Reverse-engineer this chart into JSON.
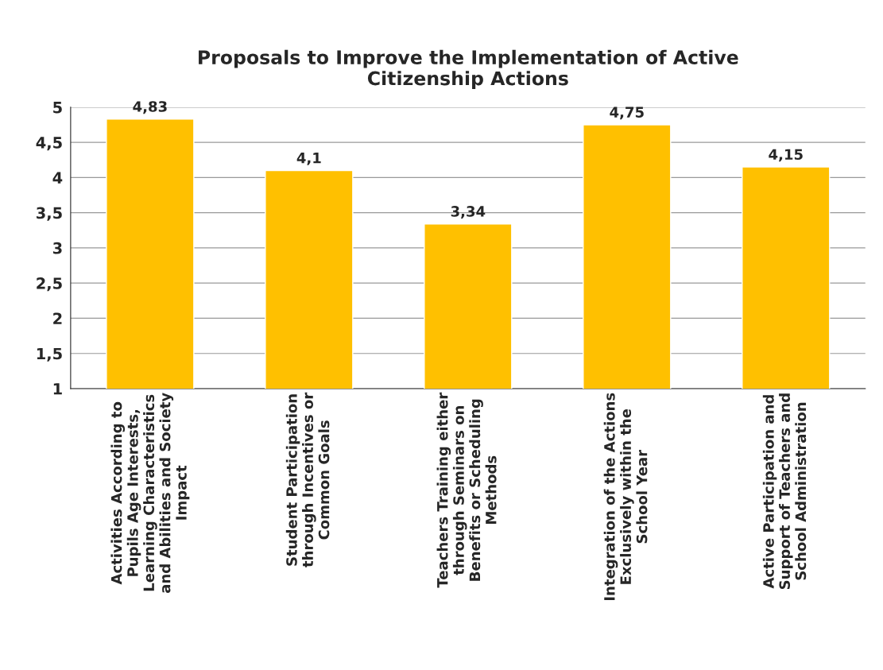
{
  "chart_data": {
    "type": "bar",
    "title": "Proposals to Improve the Implementation of Active\nCitizenship Actions",
    "categories": [
      "Activities According to\nPupils Age Interests,\nLearning Characteristics\nand Abilities and Society\nImpact",
      "Student Participation\nthrough Incentives or\nCommon Goals",
      "Teachers Training either\nthrough Seminars on\nBenefits or Scheduling\nMethods",
      "Integration of the Actions\nExclusively within the\nSchool Year",
      "Active Participation and\nSupport of Teachers and\nSchool Administration"
    ],
    "values": [
      4.83,
      4.1,
      3.34,
      4.75,
      4.15
    ],
    "value_labels": [
      "4,83",
      "4,1",
      "3,34",
      "4,75",
      "4,15"
    ],
    "color": "#ffc000",
    "ylim": [
      1,
      5
    ],
    "yticks": [
      1,
      {
        "value": 1.5,
        "label": "1,5"
      },
      2,
      {
        "value": 2.5,
        "label": "2,5"
      },
      3,
      {
        "value": 3.5,
        "label": "3,5"
      },
      4,
      {
        "value": 4.5,
        "label": "4,5"
      },
      5
    ],
    "grid": "y"
  }
}
